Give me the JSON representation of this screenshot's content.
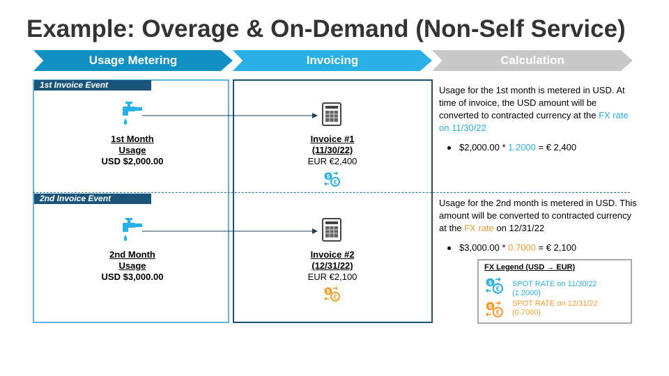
{
  "title": "Example: Overage & On-Demand (Non-Self Service)",
  "steps": [
    "Usage Metering",
    "Invoicing",
    "Calculation"
  ],
  "events": [
    {
      "label": "1st Invoice Event",
      "usage_line1": "1st Month",
      "usage_line2": "Usage",
      "usage_amount": "USD $2,000.00",
      "invoice_line1": "Invoice #1",
      "invoice_line2": "(11/30/22)",
      "invoice_amount": "EUR €2,400",
      "calc_text_a": "Usage for the 1st month is metered in USD. At time of invoice, the USD amount will be converted to contracted currency at the ",
      "calc_highlight": "FX rate on 11/30/22",
      "calc_text_b": "",
      "bullet_a": "$2,000.00 * ",
      "bullet_rate": "1.2000",
      "bullet_b": " = € 2,400",
      "accent": "#29b1e6"
    },
    {
      "label": "2nd Invoice Event",
      "usage_line1": "2nd Month",
      "usage_line2": "Usage",
      "usage_amount": "USD $3,000.00",
      "invoice_line1": "Invoice #2",
      "invoice_line2": "(12/31/22)",
      "invoice_amount": "EUR €2,100",
      "calc_text_a": "Usage for the 2nd month is metered in USD. This amount will be converted to contracted currency at the ",
      "calc_highlight": "FX rate",
      "calc_text_b": " on 12/31/22",
      "bullet_a": "$3,000.00 * ",
      "bullet_rate": "0.7000",
      "bullet_b": " = € 2,100",
      "accent": "#f79c2d"
    }
  ],
  "legend": {
    "title": "FX Legend (USD → EUR)",
    "items": [
      {
        "line1": "SPOT RATE on 11/30/22",
        "line2": "(1.2000)",
        "color": "#29b1e6"
      },
      {
        "line1": "SPOT RATE on 12/31/22",
        "line2": "(0.7000)",
        "color": "#f79c2d"
      }
    ]
  },
  "icons": {
    "faucet": "faucet-icon",
    "invoice": "invoice-document-icon",
    "exchange": "currency-exchange-icon"
  }
}
